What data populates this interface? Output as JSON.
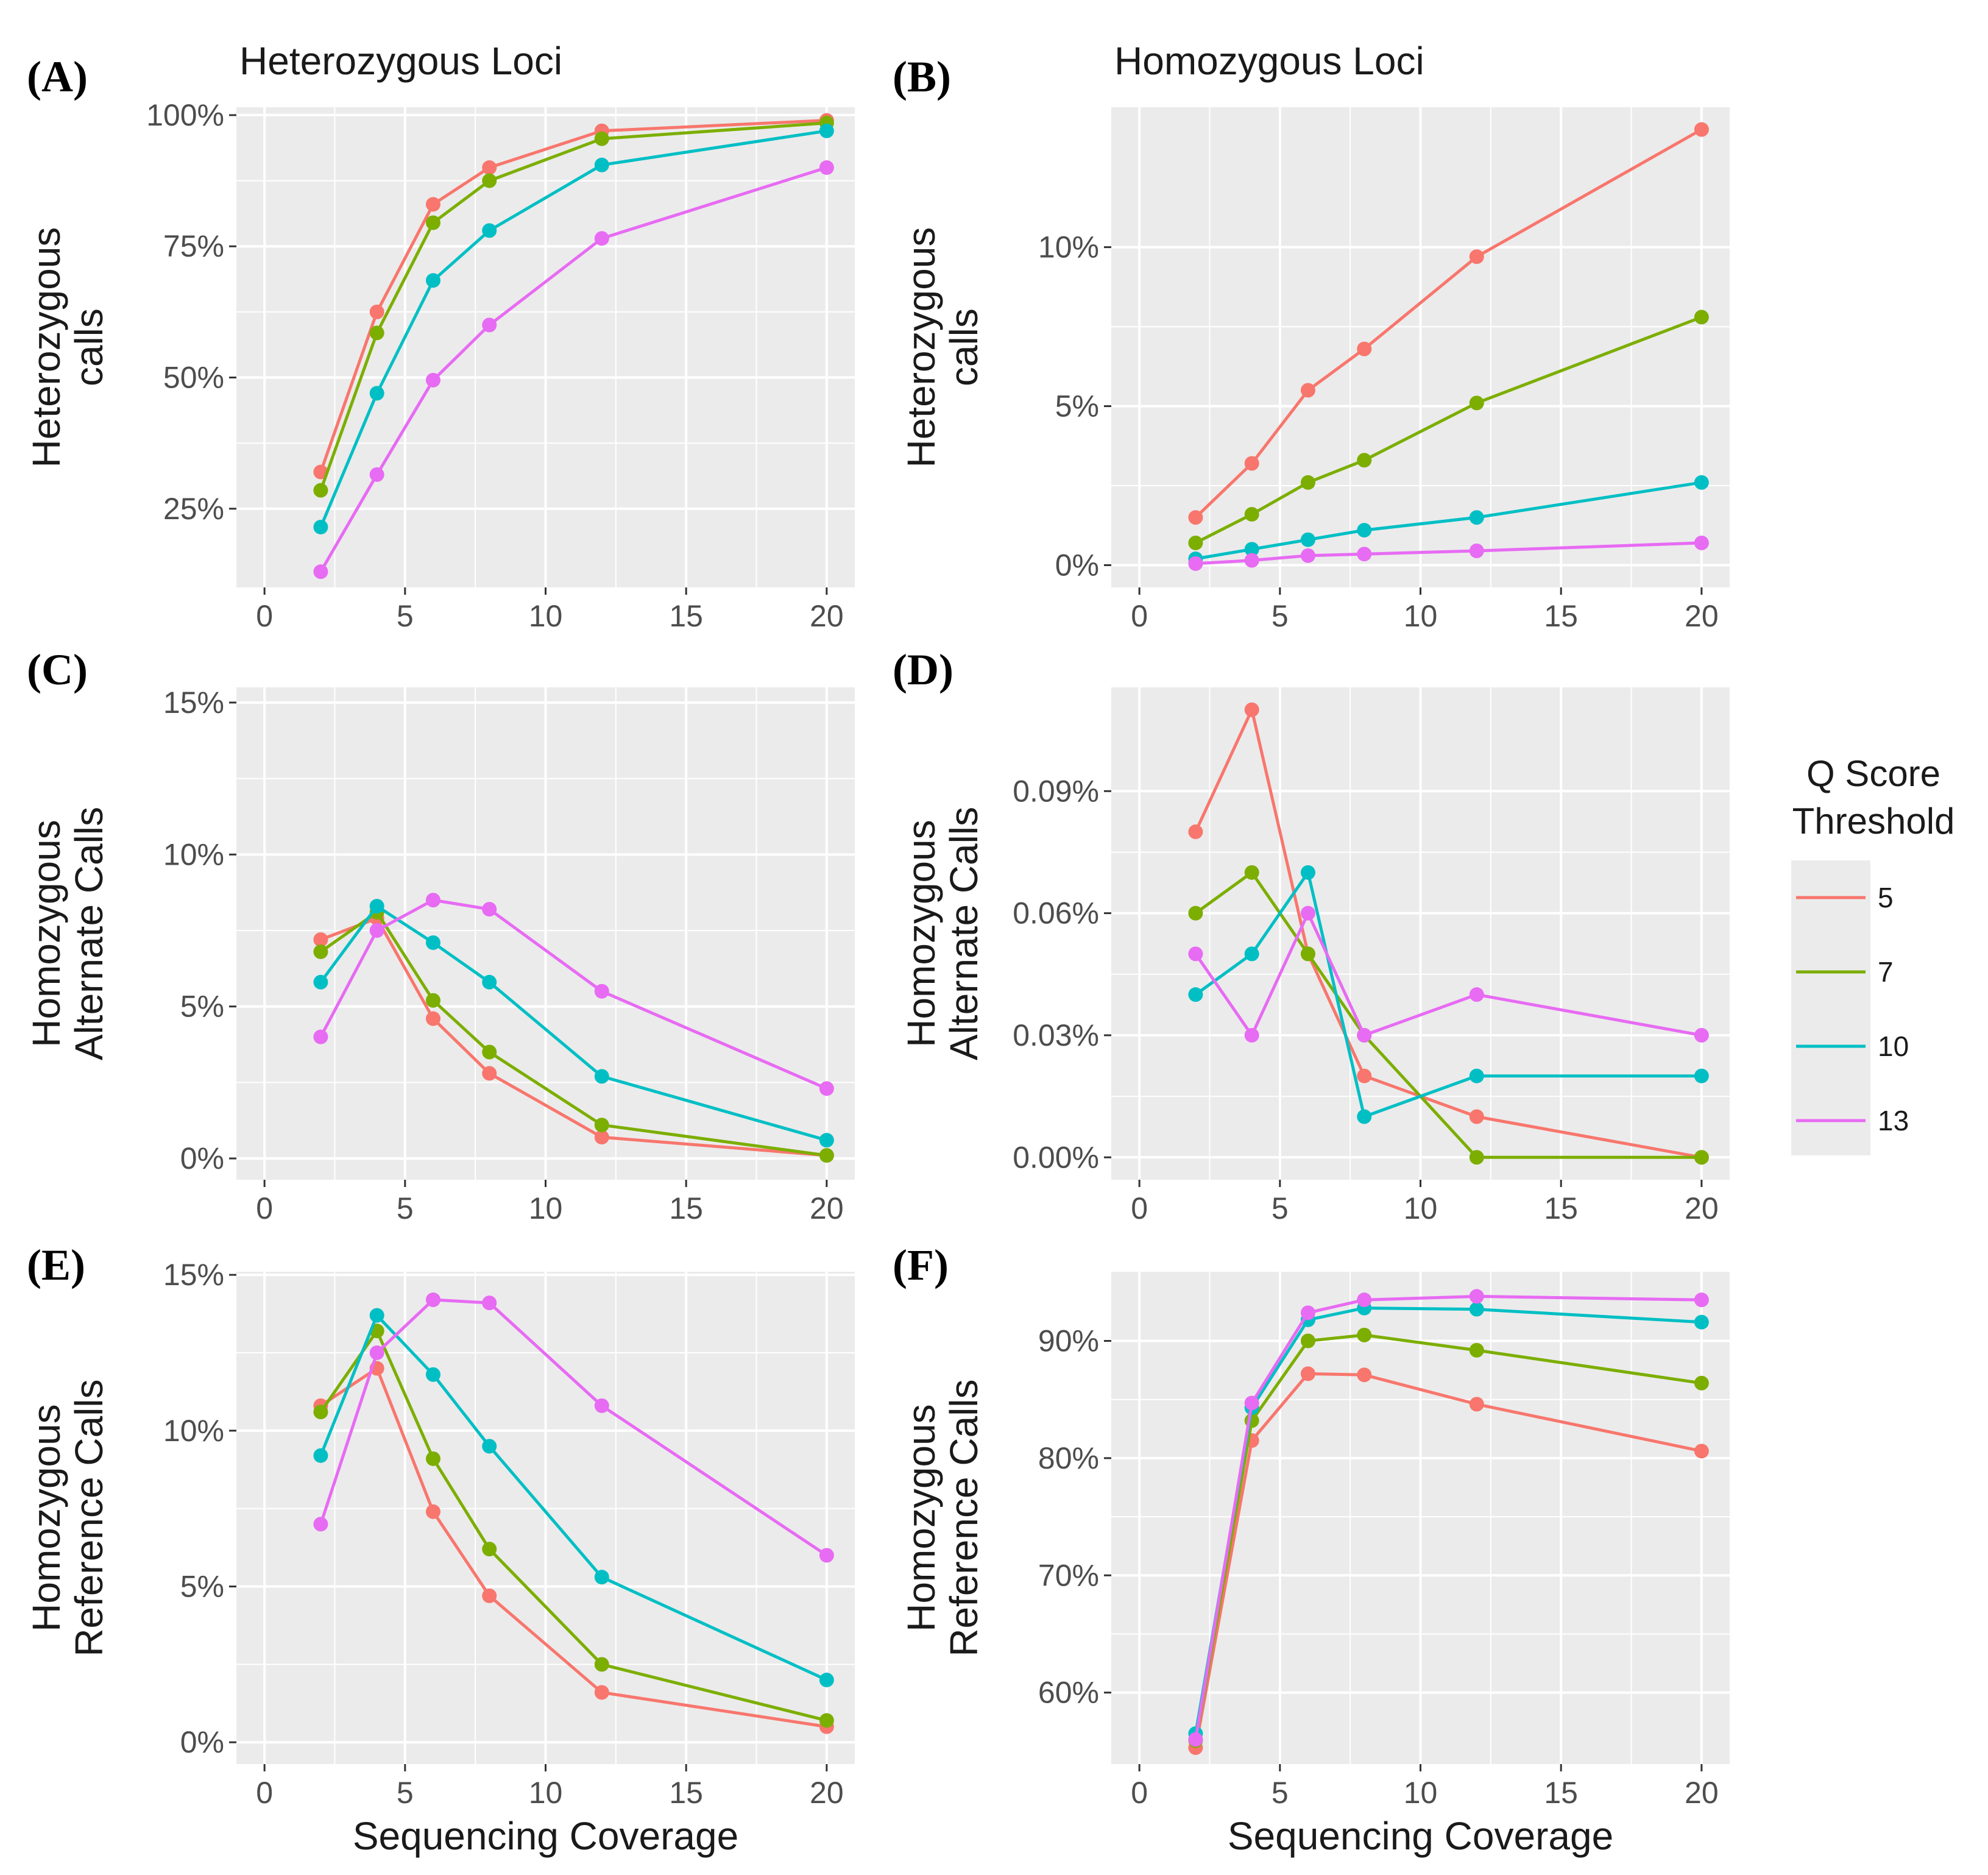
{
  "figure": {
    "xlabel": "Sequencing Coverage",
    "legend": {
      "title_lines": [
        "Q Score",
        "Threshold"
      ],
      "entries": [
        {
          "label": "5",
          "color": "#F8766D"
        },
        {
          "label": "7",
          "color": "#7CAE00"
        },
        {
          "label": "10",
          "color": "#00BFC4"
        },
        {
          "label": "13",
          "color": "#E76BF3"
        }
      ]
    }
  },
  "chart_data": [
    {
      "id": "A",
      "letter": "(A)",
      "type": "line",
      "title": "Heterozygous Loci",
      "ylabel_lines": [
        "Heterozygous",
        "calls"
      ],
      "xlabel": "",
      "xlim": [
        -1,
        21
      ],
      "xticks": [
        0,
        5,
        10,
        15,
        20
      ],
      "xtick_labels": [
        "0",
        "5",
        "10",
        "15",
        "20"
      ],
      "ylim": [
        10,
        101.5
      ],
      "yticks": [
        25,
        50,
        75,
        100
      ],
      "ytick_labels": [
        "25%",
        "50%",
        "75%",
        "100%"
      ],
      "x": [
        2,
        4,
        6,
        8,
        12,
        20
      ],
      "series": [
        {
          "name": "5",
          "color": "#F8766D",
          "values": [
            32,
            62.5,
            83,
            90,
            97,
            99
          ]
        },
        {
          "name": "7",
          "color": "#7CAE00",
          "values": [
            28.5,
            58.5,
            79.5,
            87.5,
            95.5,
            98.5
          ]
        },
        {
          "name": "10",
          "color": "#00BFC4",
          "values": [
            21.5,
            47,
            68.5,
            78,
            90.5,
            97
          ]
        },
        {
          "name": "13",
          "color": "#E76BF3",
          "values": [
            13,
            31.5,
            49.5,
            60,
            76.5,
            90
          ]
        }
      ]
    },
    {
      "id": "B",
      "letter": "(B)",
      "type": "line",
      "title": "Homozygous Loci",
      "ylabel_lines": [
        "Heterozygous",
        "calls"
      ],
      "xlabel": "",
      "xlim": [
        -1,
        21
      ],
      "xticks": [
        0,
        5,
        10,
        15,
        20
      ],
      "xtick_labels": [
        "0",
        "5",
        "10",
        "15",
        "20"
      ],
      "ylim": [
        -0.7,
        14.4
      ],
      "yticks": [
        0,
        5,
        10
      ],
      "ytick_labels": [
        "0%",
        "5%",
        "10%"
      ],
      "x": [
        2,
        4,
        6,
        8,
        12,
        20
      ],
      "series": [
        {
          "name": "5",
          "color": "#F8766D",
          "values": [
            1.5,
            3.2,
            5.5,
            6.8,
            9.7,
            13.7
          ]
        },
        {
          "name": "7",
          "color": "#7CAE00",
          "values": [
            0.7,
            1.6,
            2.6,
            3.3,
            5.1,
            7.8
          ]
        },
        {
          "name": "10",
          "color": "#00BFC4",
          "values": [
            0.2,
            0.5,
            0.8,
            1.1,
            1.5,
            2.6
          ]
        },
        {
          "name": "13",
          "color": "#E76BF3",
          "values": [
            0.05,
            0.15,
            0.3,
            0.35,
            0.45,
            0.7
          ]
        }
      ]
    },
    {
      "id": "C",
      "letter": "(C)",
      "type": "line",
      "title": "",
      "ylabel_lines": [
        "Homozygous",
        "Alternate Calls"
      ],
      "xlabel": "",
      "xlim": [
        -1,
        21
      ],
      "xticks": [
        0,
        5,
        10,
        15,
        20
      ],
      "xtick_labels": [
        "0",
        "5",
        "10",
        "15",
        "20"
      ],
      "ylim": [
        -0.7,
        15.5
      ],
      "yticks": [
        0,
        5,
        10,
        15
      ],
      "ytick_labels": [
        "0%",
        "5%",
        "10%",
        "15%"
      ],
      "x": [
        2,
        4,
        6,
        8,
        12,
        20
      ],
      "series": [
        {
          "name": "5",
          "color": "#F8766D",
          "values": [
            7.2,
            7.9,
            4.6,
            2.8,
            0.7,
            0.1
          ]
        },
        {
          "name": "7",
          "color": "#7CAE00",
          "values": [
            6.8,
            8.1,
            5.2,
            3.5,
            1.1,
            0.1
          ]
        },
        {
          "name": "10",
          "color": "#00BFC4",
          "values": [
            5.8,
            8.3,
            7.1,
            5.8,
            2.7,
            0.6
          ]
        },
        {
          "name": "13",
          "color": "#E76BF3",
          "values": [
            4.0,
            7.5,
            8.5,
            8.2,
            5.5,
            2.3
          ]
        }
      ]
    },
    {
      "id": "D",
      "letter": "(D)",
      "type": "line",
      "title": "",
      "ylabel_lines": [
        "Homozygous",
        "Alternate Calls"
      ],
      "xlabel": "",
      "xlim": [
        -1,
        21
      ],
      "xticks": [
        0,
        5,
        10,
        15,
        20
      ],
      "xtick_labels": [
        "0",
        "5",
        "10",
        "15",
        "20"
      ],
      "ylim": [
        -0.0055,
        0.1155
      ],
      "yticks": [
        0,
        0.03,
        0.06,
        0.09
      ],
      "ytick_labels": [
        "0.00%",
        "0.03%",
        "0.06%",
        "0.09%"
      ],
      "x": [
        2,
        4,
        6,
        8,
        12,
        20
      ],
      "series": [
        {
          "name": "5",
          "color": "#F8766D",
          "values": [
            0.08,
            0.11,
            0.05,
            0.02,
            0.01,
            0.0
          ]
        },
        {
          "name": "7",
          "color": "#7CAE00",
          "values": [
            0.06,
            0.07,
            0.05,
            0.03,
            0.0,
            0.0
          ]
        },
        {
          "name": "10",
          "color": "#00BFC4",
          "values": [
            0.04,
            0.05,
            0.07,
            0.01,
            0.02,
            0.02
          ]
        },
        {
          "name": "13",
          "color": "#E76BF3",
          "values": [
            0.05,
            0.03,
            0.06,
            0.03,
            0.04,
            0.03
          ]
        }
      ]
    },
    {
      "id": "E",
      "letter": "(E)",
      "type": "line",
      "title": "",
      "ylabel_lines": [
        "Homozygous",
        "Reference Calls"
      ],
      "xlabel": "Sequencing Coverage",
      "xlim": [
        -1,
        21
      ],
      "xticks": [
        0,
        5,
        10,
        15,
        20
      ],
      "xtick_labels": [
        "0",
        "5",
        "10",
        "15",
        "20"
      ],
      "ylim": [
        -0.7,
        15.1
      ],
      "yticks": [
        0,
        5,
        10,
        15
      ],
      "ytick_labels": [
        "0%",
        "5%",
        "10%",
        "15%"
      ],
      "x": [
        2,
        4,
        6,
        8,
        12,
        20
      ],
      "series": [
        {
          "name": "5",
          "color": "#F8766D",
          "values": [
            10.8,
            12.0,
            7.4,
            4.7,
            1.6,
            0.5
          ]
        },
        {
          "name": "7",
          "color": "#7CAE00",
          "values": [
            10.6,
            13.2,
            9.1,
            6.2,
            2.5,
            0.7
          ]
        },
        {
          "name": "10",
          "color": "#00BFC4",
          "values": [
            9.2,
            13.7,
            11.8,
            9.5,
            5.3,
            2.0
          ]
        },
        {
          "name": "13",
          "color": "#E76BF3",
          "values": [
            7.0,
            12.5,
            14.2,
            14.1,
            10.8,
            6.0
          ]
        }
      ]
    },
    {
      "id": "F",
      "letter": "(F)",
      "type": "line",
      "title": "",
      "ylabel_lines": [
        "Homozygous",
        "Reference Calls"
      ],
      "xlabel": "Sequencing Coverage",
      "xlim": [
        -1,
        21
      ],
      "xticks": [
        0,
        5,
        10,
        15,
        20
      ],
      "xtick_labels": [
        "0",
        "5",
        "10",
        "15",
        "20"
      ],
      "ylim": [
        53.9,
        95.9
      ],
      "yticks": [
        60,
        70,
        80,
        90
      ],
      "ytick_labels": [
        "60%",
        "70%",
        "80%",
        "90%"
      ],
      "x": [
        2,
        4,
        6,
        8,
        12,
        20
      ],
      "series": [
        {
          "name": "5",
          "color": "#F8766D",
          "values": [
            55.3,
            81.5,
            87.2,
            87.1,
            84.6,
            80.6
          ]
        },
        {
          "name": "7",
          "color": "#7CAE00",
          "values": [
            55.9,
            83.2,
            90.0,
            90.5,
            89.2,
            86.4
          ]
        },
        {
          "name": "10",
          "color": "#00BFC4",
          "values": [
            56.5,
            84.3,
            91.8,
            92.8,
            92.7,
            91.6
          ]
        },
        {
          "name": "13",
          "color": "#E76BF3",
          "values": [
            56.0,
            84.7,
            92.4,
            93.5,
            93.8,
            93.5
          ]
        }
      ]
    }
  ]
}
